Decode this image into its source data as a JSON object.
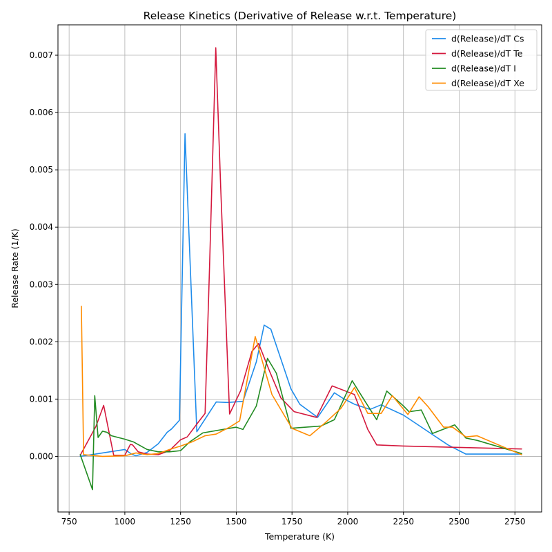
{
  "chart_data": {
    "type": "line",
    "title": "Release Kinetics (Derivative of Release w.r.t. Temperature)",
    "xlabel": "Temperature (K)",
    "ylabel": "Release Rate (1/K)",
    "xlim": [
      700,
      2870
    ],
    "ylim": [
      -0.00097,
      0.00753
    ],
    "x_ticks": [
      750,
      1000,
      1250,
      1500,
      1750,
      2000,
      2250,
      2500,
      2750
    ],
    "x_tick_labels": [
      "750",
      "1000",
      "1250",
      "1500",
      "1750",
      "2000",
      "2250",
      "2500",
      "2750"
    ],
    "y_ticks": [
      0,
      0.001,
      0.002,
      0.003,
      0.004,
      0.005,
      0.006,
      0.007
    ],
    "y_tick_labels": [
      "0.000",
      "0.001",
      "0.002",
      "0.003",
      "0.004",
      "0.005",
      "0.006",
      "0.007"
    ],
    "grid": true,
    "legend_position": "top-right",
    "series": [
      {
        "name": "d(Release)/dT Cs",
        "color": "#1f8ceb",
        "points": [
          [
            800,
            0.0
          ],
          [
            1000,
            0.00012
          ],
          [
            1030,
            4e-05
          ],
          [
            1050,
            1e-05
          ],
          [
            1100,
            7e-05
          ],
          [
            1150,
            0.00022
          ],
          [
            1190,
            0.00042
          ],
          [
            1210,
            0.00048
          ],
          [
            1245,
            0.00063
          ],
          [
            1270,
            0.00563
          ],
          [
            1323,
            0.00043
          ],
          [
            1410,
            0.00095
          ],
          [
            1460,
            0.00094
          ],
          [
            1530,
            0.00096
          ],
          [
            1590,
            0.00165
          ],
          [
            1625,
            0.00229
          ],
          [
            1655,
            0.00222
          ],
          [
            1745,
            0.00118
          ],
          [
            1785,
            0.00091
          ],
          [
            1865,
            0.00068
          ],
          [
            1940,
            0.00111
          ],
          [
            1980,
            0.00101
          ],
          [
            2030,
            0.00091
          ],
          [
            2100,
            0.00082
          ],
          [
            2150,
            0.0009
          ],
          [
            2250,
            0.00072
          ],
          [
            2450,
            0.0002
          ],
          [
            2530,
            4e-05
          ],
          [
            2780,
            4e-05
          ]
        ]
      },
      {
        "name": "d(Release)/dT Te",
        "color": "#d4183d",
        "points": [
          [
            800,
            2e-05
          ],
          [
            870,
            0.00052
          ],
          [
            905,
            0.00089
          ],
          [
            950,
            2e-05
          ],
          [
            1000,
            2e-05
          ],
          [
            1025,
            0.00021
          ],
          [
            1035,
            0.0002
          ],
          [
            1060,
            8e-05
          ],
          [
            1100,
            4e-05
          ],
          [
            1150,
            3e-05
          ],
          [
            1200,
            0.0001
          ],
          [
            1250,
            0.00029
          ],
          [
            1280,
            0.00034
          ],
          [
            1330,
            0.0006
          ],
          [
            1360,
            0.00075
          ],
          [
            1380,
            0.0033
          ],
          [
            1408,
            0.00713
          ],
          [
            1430,
            0.0047
          ],
          [
            1470,
            0.00074
          ],
          [
            1520,
            0.00115
          ],
          [
            1570,
            0.00183
          ],
          [
            1600,
            0.00197
          ],
          [
            1650,
            0.00148
          ],
          [
            1700,
            0.00102
          ],
          [
            1760,
            0.00078
          ],
          [
            1860,
            0.00068
          ],
          [
            1930,
            0.00123
          ],
          [
            2030,
            0.00108
          ],
          [
            2090,
            0.00047
          ],
          [
            2130,
            0.0002
          ],
          [
            2250,
            0.00018
          ],
          [
            2780,
            0.00013
          ]
        ]
      },
      {
        "name": "d(Release)/dT I",
        "color": "#228b22",
        "points": [
          [
            800,
            3e-05
          ],
          [
            855,
            -0.00058
          ],
          [
            865,
            0.00106
          ],
          [
            880,
            0.00033
          ],
          [
            900,
            0.00044
          ],
          [
            920,
            0.00042
          ],
          [
            940,
            0.00036
          ],
          [
            1000,
            0.0003
          ],
          [
            1040,
            0.00025
          ],
          [
            1100,
            0.00012
          ],
          [
            1150,
            8e-05
          ],
          [
            1200,
            8e-05
          ],
          [
            1250,
            0.0001
          ],
          [
            1290,
            0.00025
          ],
          [
            1350,
            0.00041
          ],
          [
            1500,
            0.00051
          ],
          [
            1530,
            0.00047
          ],
          [
            1590,
            0.00088
          ],
          [
            1640,
            0.00171
          ],
          [
            1680,
            0.00145
          ],
          [
            1745,
            0.00049
          ],
          [
            1880,
            0.00053
          ],
          [
            1940,
            0.00064
          ],
          [
            2020,
            0.00132
          ],
          [
            2060,
            0.00107
          ],
          [
            2130,
            0.00064
          ],
          [
            2175,
            0.00114
          ],
          [
            2250,
            0.00088
          ],
          [
            2275,
            0.00078
          ],
          [
            2330,
            0.00081
          ],
          [
            2380,
            0.0004
          ],
          [
            2480,
            0.00055
          ],
          [
            2530,
            0.00032
          ],
          [
            2580,
            0.00028
          ],
          [
            2780,
            5e-05
          ]
        ]
      },
      {
        "name": "d(Release)/dT Xe",
        "color": "#ff8c00",
        "points": [
          [
            805,
            0.00262
          ],
          [
            815,
            3e-05
          ],
          [
            900,
            0.0
          ],
          [
            1000,
            1e-05
          ],
          [
            1050,
            6e-05
          ],
          [
            1100,
            3e-05
          ],
          [
            1150,
            5e-05
          ],
          [
            1200,
            0.00012
          ],
          [
            1250,
            0.00018
          ],
          [
            1300,
            0.00025
          ],
          [
            1360,
            0.00036
          ],
          [
            1410,
            0.00039
          ],
          [
            1470,
            0.00051
          ],
          [
            1515,
            0.00062
          ],
          [
            1585,
            0.00209
          ],
          [
            1660,
            0.00108
          ],
          [
            1750,
            0.00049
          ],
          [
            1830,
            0.00036
          ],
          [
            1900,
            0.00059
          ],
          [
            1970,
            0.00084
          ],
          [
            2030,
            0.0012
          ],
          [
            2090,
            0.00075
          ],
          [
            2150,
            0.00075
          ],
          [
            2200,
            0.00106
          ],
          [
            2270,
            0.00073
          ],
          [
            2320,
            0.00104
          ],
          [
            2360,
            0.00087
          ],
          [
            2430,
            0.00051
          ],
          [
            2470,
            0.00051
          ],
          [
            2530,
            0.00034
          ],
          [
            2580,
            0.00036
          ],
          [
            2780,
            3e-05
          ]
        ]
      }
    ]
  }
}
